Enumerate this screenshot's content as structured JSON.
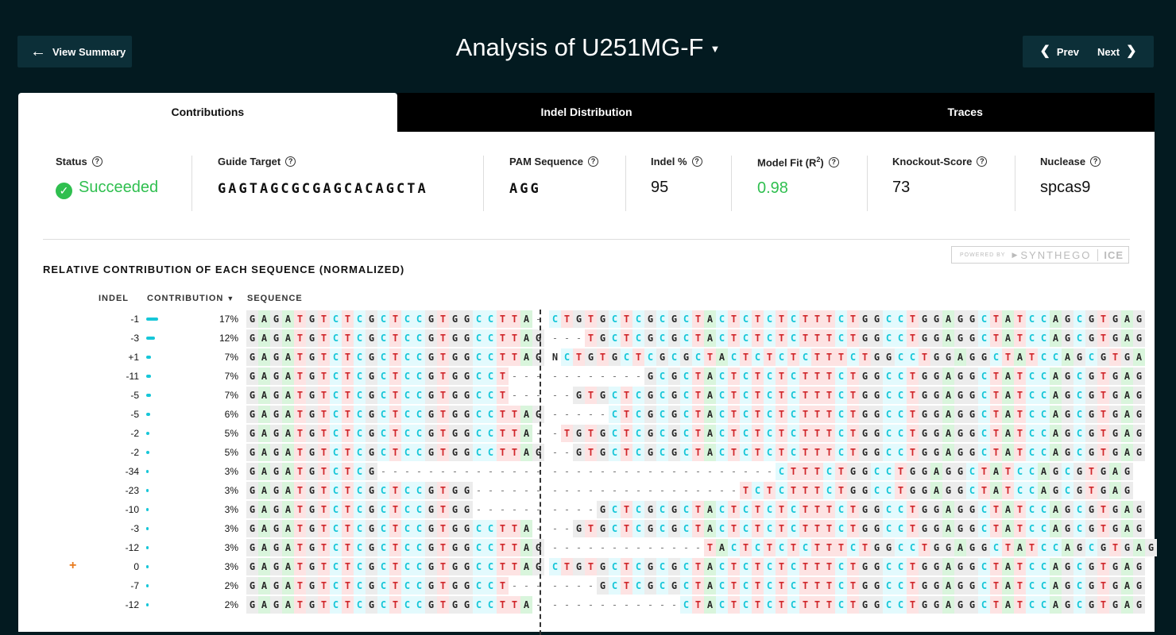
{
  "header": {
    "back_label": "View Summary",
    "title": "Analysis of U251MG-F",
    "prev_label": "Prev",
    "next_label": "Next"
  },
  "tabs": [
    "Contributions",
    "Indel Distribution",
    "Traces"
  ],
  "stats": {
    "status_label": "Status",
    "status_value": "Succeeded",
    "guide_label": "Guide Target",
    "guide_value": "GAGTAGCGCGAGCACAGCTA",
    "pam_label": "PAM Sequence",
    "pam_value": "AGG",
    "indel_label": "Indel %",
    "indel_value": "95",
    "fit_label": "Model Fit (R",
    "fit_sup": "2",
    "fit_value": "0.98",
    "ko_label": "Knockout-Score",
    "ko_value": "73",
    "nuclease_label": "Nuclease",
    "nuclease_value": "spcas9"
  },
  "powered": {
    "powered_by": "POWERED BY",
    "brand": "SYNTHEGO",
    "product": "ICE"
  },
  "section_title": "RELATIVE CONTRIBUTION OF EACH SEQUENCE (NORMALIZED)",
  "columns": {
    "indel": "INDEL",
    "contribution": "CONTRIBUTION",
    "sequence": "SEQUENCE"
  },
  "colors": {
    "A": "#2a2a2a",
    "C": "#16c6d8",
    "G": "#2a2a2a",
    "T": "#d0262a",
    "N": "#2a2a2a",
    "accent": "#2fbf4f",
    "bar": "#16c6d8",
    "background": "#031a20"
  },
  "rows": [
    {
      "indel": "-1",
      "contribution": "17%",
      "frac": 0.17,
      "seq": "GAGATGTCTCGCTCCGTGGCCTTA-|CTGTGCTCGCGCTACTCTCTCTTTCTGGCCTGGAGGCTATCCAGCGTGAG"
    },
    {
      "indel": "-3",
      "contribution": "12%",
      "frac": 0.12,
      "seq": "GAGATGTCTCGCTCCGTGGCCTTAG|---TGCTCGCGCTACTCTCTCTTTCTGGCCTGGAGGCTATCCAGCGTGAG"
    },
    {
      "indel": "+1",
      "contribution": "7%",
      "frac": 0.07,
      "seq": "GAGATGTCTCGCTCCGTGGCCTTAG|NCTGTGCTCGCGCTACTCTCTCTTTCTGGCCTGGAGGCTATCCAGCGTGA"
    },
    {
      "indel": "-11",
      "contribution": "7%",
      "frac": 0.07,
      "seq": "GAGATGTCTCGCTCCGTGGCCT---|--------GCGCTACTCTCTCTTTCTGGCCTGGAGGCTATCCAGCGTGAG"
    },
    {
      "indel": "-5",
      "contribution": "7%",
      "frac": 0.07,
      "seq": "GAGATGTCTCGCTCCGTGGCCT---|--GTGCTCGCGCTACTCTCTCTTTCTGGCCTGGAGGCTATCCAGCGTGAG"
    },
    {
      "indel": "-5",
      "contribution": "6%",
      "frac": 0.06,
      "seq": "GAGATGTCTCGCTCCGTGGCCTTAG|-----CTCGCGCTACTCTCTCTTTCTGGCCTGGAGGCTATCCAGCGTGAG"
    },
    {
      "indel": "-2",
      "contribution": "5%",
      "frac": 0.05,
      "seq": "GAGATGTCTCGCTCCGTGGCCTTA-|-TGTGCTCGCGCTACTCTCTCTTTCTGGCCTGGAGGCTATCCAGCGTGAG"
    },
    {
      "indel": "-2",
      "contribution": "5%",
      "frac": 0.05,
      "seq": "GAGATGTCTCGCTCCGTGGCCTTAG|--GTGCTCGCGCTACTCTCTCTTTCTGGCCTGGAGGCTATCCAGCGTGAG"
    },
    {
      "indel": "-34",
      "contribution": "3%",
      "frac": 0.03,
      "seq": "GAGATGTCTCG--------------|-------------------CTTTCTGGCCTGGAGGCTATCCAGCGTGAG"
    },
    {
      "indel": "-23",
      "contribution": "3%",
      "frac": 0.03,
      "seq": "GAGATGTCTCGCTCCGTGG------|----------------TCTCTTTCTGGCCTGGAGGCTATCCAGCGTGAG"
    },
    {
      "indel": "-10",
      "contribution": "3%",
      "frac": 0.03,
      "seq": "GAGATGTCTCGCTCCGTGG------|----GCTCGCGCTACTCTCTCTTTCTGGCCTGGAGGCTATCCAGCGTGAG"
    },
    {
      "indel": "-3",
      "contribution": "3%",
      "frac": 0.03,
      "seq": "GAGATGTCTCGCTCCGTGGCCTTA-|--GTGCTCGCGCTACTCTCTCTTTCTGGCCTGGAGGCTATCCAGCGTGAG"
    },
    {
      "indel": "-12",
      "contribution": "3%",
      "frac": 0.03,
      "seq": "GAGATGTCTCGCTCCGTGGCCTTAG|-------------TACTCTCTCTTTCTGGCCTGGAGGCTATCCAGCGTGAG"
    },
    {
      "indel": "0",
      "contribution": "3%",
      "frac": 0.03,
      "marker": "+",
      "seq": "GAGATGTCTCGCTCCGTGGCCTTAG|CTGTGCTCGCGCTACTCTCTCTTTCTGGCCTGGAGGCTATCCAGCGTGAG"
    },
    {
      "indel": "-7",
      "contribution": "2%",
      "frac": 0.02,
      "seq": "GAGATGTCTCGCTCCGTGGCCT---|----GCTCGCGCTACTCTCTCTTTCTGGCCTGGAGGCTATCCAGCGTGAG"
    },
    {
      "indel": "-12",
      "contribution": "2%",
      "frac": 0.02,
      "seq": "GAGATGTCTCGCTCCGTGGCCTTA-|-----------CTACTCTCTCTTTCTGGCCTGGAGGCTATCCAGCGTGAG"
    }
  ]
}
